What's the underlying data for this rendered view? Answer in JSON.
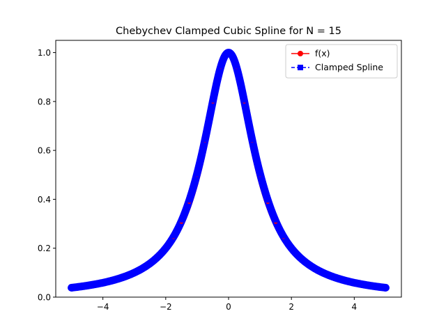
{
  "chart_data": {
    "type": "line",
    "title": "Chebychev Clamped Cubic Spline for N = 15",
    "xlabel": "",
    "ylabel": "",
    "xlim": [
      -5.5,
      5.5
    ],
    "ylim": [
      -0.0,
      1.05
    ],
    "x_ticks": [
      -4,
      -2,
      0,
      2,
      4
    ],
    "x_tick_labels": [
      "−4",
      "−2",
      "0",
      "2",
      "4"
    ],
    "y_ticks": [
      0.0,
      0.2,
      0.4,
      0.6,
      0.8,
      1.0
    ],
    "y_tick_labels": [
      "0.0",
      "0.2",
      "0.4",
      "0.6",
      "0.8",
      "1.0"
    ],
    "grid": false,
    "legend_position": "top-right",
    "series": [
      {
        "name": "f(x)",
        "color": "#ff0000",
        "marker": "circle",
        "linestyle": "solid",
        "x": [
          -5,
          -4.5,
          -4,
          -3.5,
          -3,
          -2.5,
          -2,
          -1.75,
          -1.5,
          -1.25,
          -1,
          -0.75,
          -0.5,
          -0.25,
          0,
          0.25,
          0.5,
          0.75,
          1,
          1.25,
          1.5,
          1.75,
          2,
          2.5,
          3,
          3.5,
          4,
          4.5,
          5
        ],
        "y": [
          0.038,
          0.047,
          0.059,
          0.075,
          0.1,
          0.138,
          0.2,
          0.246,
          0.308,
          0.39,
          0.5,
          0.64,
          0.8,
          0.941,
          1.0,
          0.941,
          0.8,
          0.64,
          0.5,
          0.39,
          0.308,
          0.246,
          0.2,
          0.138,
          0.1,
          0.075,
          0.059,
          0.047,
          0.038
        ]
      },
      {
        "name": "Clamped Spline",
        "color": "#0000ff",
        "marker": "square",
        "linestyle": "dashed",
        "x": [
          -5,
          -4.5,
          -4,
          -3.5,
          -3,
          -2.5,
          -2,
          -1.75,
          -1.5,
          -1.25,
          -1,
          -0.75,
          -0.5,
          -0.25,
          0,
          0.25,
          0.5,
          0.75,
          1,
          1.25,
          1.5,
          1.75,
          2,
          2.5,
          3,
          3.5,
          4,
          4.5,
          5
        ],
        "y": [
          0.038,
          0.047,
          0.059,
          0.075,
          0.1,
          0.138,
          0.2,
          0.25,
          0.315,
          0.396,
          0.503,
          0.643,
          0.805,
          0.944,
          1.0,
          0.944,
          0.805,
          0.643,
          0.503,
          0.396,
          0.315,
          0.25,
          0.2,
          0.138,
          0.1,
          0.075,
          0.059,
          0.047,
          0.038
        ]
      }
    ]
  }
}
